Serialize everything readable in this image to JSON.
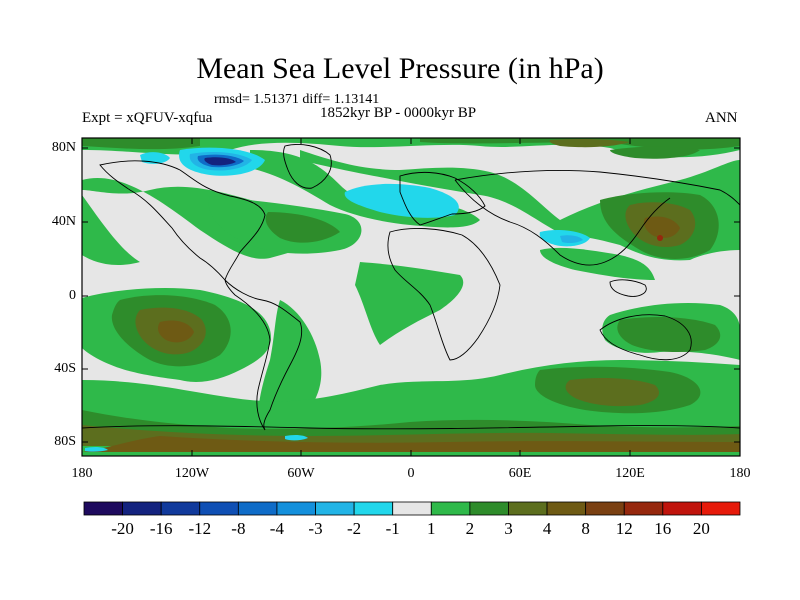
{
  "title": "Mean Sea Level Pressure (in hPa)",
  "stats": "rmsd= 1.51371 diff= 1.13141",
  "period": "1852kyr BP - 0000kyr BP",
  "experiment": "Expt = xQFUV-xqfua",
  "season": "ANN",
  "axes": {
    "lat_ticks": [
      "80N",
      "40N",
      "0",
      "40S",
      "80S"
    ],
    "lon_ticks": [
      "180",
      "120W",
      "60W",
      "0",
      "60E",
      "120E",
      "180"
    ]
  },
  "colorbar": {
    "labels": [
      "-20",
      "-16",
      "-12",
      "-8",
      "-4",
      "-3",
      "-2",
      "-1",
      "1",
      "2",
      "3",
      "4",
      "8",
      "12",
      "16",
      "20"
    ],
    "colors": [
      "#1e0a5e",
      "#14237f",
      "#113a9c",
      "#0f4fb4",
      "#0f6cc8",
      "#1490dc",
      "#22b4e6",
      "#22d7eb",
      "#e6e6e6",
      "#2fb94a",
      "#2e8c2b",
      "#5c6e1e",
      "#6e5a14",
      "#7a4012",
      "#96280e",
      "#c0140c",
      "#e61a0a"
    ]
  },
  "palette": {
    "neutral": "#e6e6e6",
    "green": "#2fb94a",
    "darkgreen": "#2e8c2b",
    "olive": "#5c6e1e",
    "brown": "#6e5a14",
    "rust": "#96280e",
    "cyan": "#22d7eb",
    "lightblue": "#22b4e6",
    "blue": "#0f6cc8",
    "navy": "#14237f"
  }
}
